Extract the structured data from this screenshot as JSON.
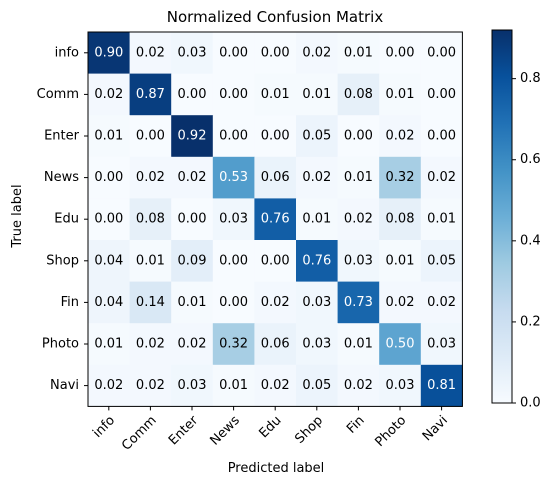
{
  "chart_data": {
    "type": "heatmap",
    "title": "Normalized Confusion Matrix",
    "xlabel": "Predicted label",
    "ylabel": "True label",
    "x_categories": [
      "info",
      "Comm",
      "Enter",
      "News",
      "Edu",
      "Shop",
      "Fin",
      "Photo",
      "Navi"
    ],
    "y_categories": [
      "info",
      "Comm",
      "Enter",
      "News",
      "Edu",
      "Shop",
      "Fin",
      "Photo",
      "Navi"
    ],
    "values": [
      [
        0.9,
        0.02,
        0.03,
        0.0,
        0.0,
        0.02,
        0.01,
        0.0,
        0.0
      ],
      [
        0.02,
        0.87,
        0.0,
        0.0,
        0.01,
        0.01,
        0.08,
        0.01,
        0.0
      ],
      [
        0.01,
        0.0,
        0.92,
        0.0,
        0.0,
        0.05,
        0.0,
        0.02,
        0.0
      ],
      [
        0.0,
        0.02,
        0.02,
        0.53,
        0.06,
        0.02,
        0.01,
        0.32,
        0.02
      ],
      [
        0.0,
        0.08,
        0.0,
        0.03,
        0.76,
        0.01,
        0.02,
        0.08,
        0.01
      ],
      [
        0.04,
        0.01,
        0.09,
        0.0,
        0.0,
        0.76,
        0.03,
        0.01,
        0.05
      ],
      [
        0.04,
        0.14,
        0.01,
        0.0,
        0.02,
        0.03,
        0.73,
        0.02,
        0.02
      ],
      [
        0.01,
        0.02,
        0.02,
        0.32,
        0.06,
        0.03,
        0.01,
        0.5,
        0.03
      ],
      [
        0.02,
        0.02,
        0.03,
        0.01,
        0.02,
        0.05,
        0.02,
        0.03,
        0.81
      ]
    ],
    "value_format_decimals": 2,
    "colormap": "Blues",
    "colormap_stops": [
      "#f7fbff",
      "#deebf7",
      "#c6dbef",
      "#9ecae1",
      "#6baed6",
      "#4292c6",
      "#2171b5",
      "#08519c",
      "#08306b"
    ],
    "value_range": [
      0.0,
      0.92
    ],
    "colorbar": {
      "ticks": [
        0.0,
        0.2,
        0.4,
        0.6,
        0.8
      ],
      "tick_labels": [
        "0.0",
        "0.2",
        "0.4",
        "0.6",
        "0.8"
      ]
    },
    "text_color_dark": "#000000",
    "text_color_light": "#ffffff",
    "grid": false
  }
}
